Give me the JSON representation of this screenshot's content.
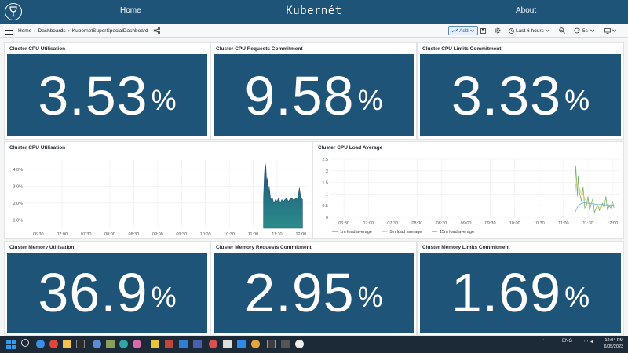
{
  "site": {
    "nav_home": "Home",
    "brand": "Kubernét",
    "nav_about": "About"
  },
  "toolbar": {
    "breadcrumbs": [
      "Home",
      "Dashboards",
      "KubernetSuperSpecialDashboard"
    ],
    "breadcrumb_sep": "›",
    "add_label": "Add",
    "time_range": "Last 6 hours",
    "refresh_interval": "5s"
  },
  "stats_top": [
    {
      "title": "Cluster CPU Utilisation",
      "value": "3.53",
      "unit": "%"
    },
    {
      "title": "Cluster CPU Requests Commitment",
      "value": "9.58",
      "unit": "%"
    },
    {
      "title": "Cluster CPU Limits Commitment",
      "value": "3.33",
      "unit": "%"
    }
  ],
  "stats_bottom": [
    {
      "title": "Cluster Memory Utilisation",
      "value": "36.9",
      "unit": "%"
    },
    {
      "title": "Cluster Memory Requests Commitment",
      "value": "2.95",
      "unit": "%"
    },
    {
      "title": "Cluster Memory Limits Commitment",
      "value": "1.69",
      "unit": "%"
    }
  ],
  "chart_data": [
    {
      "type": "area",
      "title": "Cluster CPU Utilisation",
      "x_ticks": [
        "06:30",
        "07:00",
        "07:30",
        "08:00",
        "08:30",
        "09:00",
        "09:30",
        "10:00",
        "10:30",
        "11:00",
        "11:30",
        "12:00"
      ],
      "y_ticks": [
        "1.0%",
        "2.0%",
        "3.0%",
        "4.0%"
      ],
      "ylim": [
        0.5,
        4.6
      ],
      "grid": true,
      "color": "#1f5479",
      "series": [
        {
          "x": [
            "11:13",
            "11:14",
            "11:15",
            "11:16",
            "11:17",
            "11:18",
            "11:19",
            "11:20",
            "11:22",
            "11:24",
            "11:26",
            "11:28",
            "11:30",
            "11:32",
            "11:34",
            "11:36",
            "11:38",
            "11:40",
            "11:42",
            "11:44",
            "11:46",
            "11:48",
            "11:50",
            "11:52",
            "11:54",
            "11:56",
            "11:58",
            "12:00",
            "12:02"
          ],
          "values": [
            2.3,
            3.6,
            4.4,
            4.1,
            3.2,
            3.5,
            2.5,
            3.0,
            2.2,
            2.3,
            2.0,
            2.2,
            2.1,
            2.3,
            2.0,
            2.2,
            2.1,
            2.2,
            2.3,
            2.1,
            2.2,
            2.3,
            2.2,
            2.2,
            2.3,
            2.2,
            2.9,
            2.3,
            2.2
          ]
        }
      ]
    },
    {
      "type": "line",
      "title": "Cluster CPU Load Average",
      "x_ticks": [
        "06:30",
        "07:00",
        "07:30",
        "08:00",
        "08:30",
        "09:00",
        "09:30",
        "10:00",
        "10:30",
        "11:00",
        "11:30",
        "12:00"
      ],
      "y_ticks": [
        "0",
        "0.5",
        "1",
        "1.5",
        "2",
        "2.5"
      ],
      "ylim": [
        0,
        2.5
      ],
      "grid": true,
      "legend": "bottom-left",
      "series": [
        {
          "name": "1m load average",
          "color": "#7eb26d",
          "x": [
            "11:14",
            "11:15",
            "11:16",
            "11:17",
            "11:18",
            "11:19",
            "11:20",
            "11:22",
            "11:24",
            "11:26",
            "11:28",
            "11:30",
            "11:32",
            "11:34",
            "11:36",
            "11:38",
            "11:40",
            "11:42",
            "11:44",
            "11:46",
            "11:48",
            "11:50",
            "11:52",
            "11:54",
            "11:56",
            "11:58",
            "12:00",
            "12:02"
          ],
          "values": [
            1.2,
            2.2,
            1.6,
            0.9,
            1.8,
            1.2,
            1.0,
            0.7,
            1.3,
            0.4,
            0.5,
            0.9,
            0.3,
            0.6,
            0.8,
            0.2,
            0.4,
            0.5,
            0.3,
            0.5,
            0.6,
            0.4,
            0.9,
            0.3,
            0.5,
            0.4,
            0.7,
            0.4
          ]
        },
        {
          "name": "5m load average",
          "color": "#e5c644",
          "x": [
            "11:14",
            "11:15",
            "11:16",
            "11:17",
            "11:18",
            "11:19",
            "11:20",
            "11:22",
            "11:24",
            "11:26",
            "11:28",
            "11:30",
            "11:32",
            "11:34",
            "11:36",
            "11:38",
            "11:40",
            "11:42",
            "11:44",
            "11:46",
            "11:48",
            "11:50",
            "11:52",
            "11:54",
            "11:56",
            "11:58",
            "12:00",
            "12:02"
          ],
          "values": [
            0.9,
            1.4,
            1.5,
            1.4,
            1.3,
            1.3,
            1.2,
            1.0,
            1.0,
            0.8,
            0.7,
            0.7,
            0.6,
            0.6,
            0.6,
            0.5,
            0.5,
            0.5,
            0.4,
            0.4,
            0.5,
            0.5,
            0.5,
            0.5,
            0.5,
            0.5,
            0.5,
            0.5
          ]
        },
        {
          "name": "15m load average",
          "color": "#6fb3d9",
          "x": [
            "11:14",
            "11:16",
            "11:18",
            "11:20",
            "11:22",
            "11:24",
            "11:26",
            "11:28",
            "11:30",
            "11:32",
            "11:34",
            "11:36",
            "11:38",
            "11:40",
            "11:42",
            "11:44",
            "11:46",
            "11:48",
            "11:50",
            "11:52",
            "11:54",
            "11:56",
            "11:58",
            "12:00",
            "12:02"
          ],
          "values": [
            0.2,
            0.35,
            0.5,
            0.55,
            0.6,
            0.62,
            0.62,
            0.62,
            0.6,
            0.6,
            0.58,
            0.58,
            0.57,
            0.56,
            0.55,
            0.55,
            0.55,
            0.54,
            0.54,
            0.54,
            0.54,
            0.53,
            0.53,
            0.53,
            0.53
          ]
        }
      ]
    }
  ],
  "taskbar": {
    "tray_lang": "ENG",
    "time": "12:04 PM",
    "date": "6/05/2023"
  }
}
